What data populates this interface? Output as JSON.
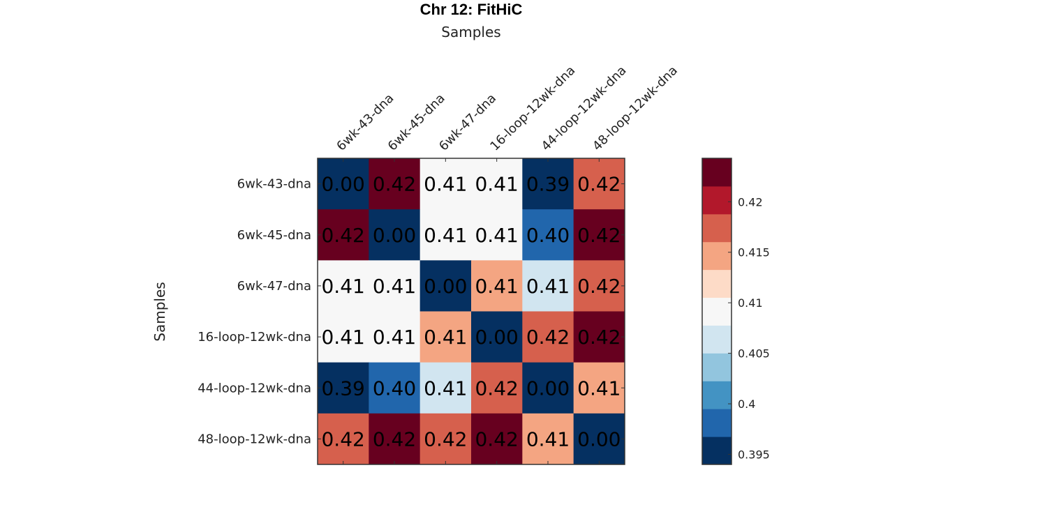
{
  "chart_data": {
    "type": "heatmap",
    "title": "Chr 12: FitHiC",
    "xlabel": "Samples",
    "ylabel": "Samples",
    "x_categories": [
      "6wk-43-dna",
      "6wk-45-dna",
      "6wk-47-dna",
      "16-loop-12wk-dna",
      "44-loop-12wk-dna",
      "48-loop-12wk-dna"
    ],
    "y_categories": [
      "6wk-43-dna",
      "6wk-45-dna",
      "6wk-47-dna",
      "16-loop-12wk-dna",
      "44-loop-12wk-dna",
      "48-loop-12wk-dna"
    ],
    "values": [
      [
        0.0,
        0.4235,
        0.4095,
        0.4097,
        0.3945,
        0.4175
      ],
      [
        0.4235,
        0.0,
        0.4095,
        0.4097,
        0.3985,
        0.4235
      ],
      [
        0.4095,
        0.4095,
        0.0,
        0.4135,
        0.4065,
        0.4175
      ],
      [
        0.4097,
        0.4097,
        0.4135,
        0.0,
        0.4175,
        0.4235
      ],
      [
        0.3945,
        0.3985,
        0.4065,
        0.4175,
        0.0,
        0.4135
      ],
      [
        0.4175,
        0.4235,
        0.4175,
        0.4235,
        0.4135,
        0.0
      ]
    ],
    "cell_labels": [
      [
        "0.00",
        "0.42",
        "0.41",
        "0.41",
        "0.39",
        "0.42"
      ],
      [
        "0.42",
        "0.00",
        "0.41",
        "0.41",
        "0.40",
        "0.42"
      ],
      [
        "0.41",
        "0.41",
        "0.00",
        "0.41",
        "0.41",
        "0.42"
      ],
      [
        "0.41",
        "0.41",
        "0.41",
        "0.00",
        "0.42",
        "0.42"
      ],
      [
        "0.39",
        "0.40",
        "0.41",
        "0.42",
        "0.00",
        "0.41"
      ],
      [
        "0.42",
        "0.42",
        "0.42",
        "0.42",
        "0.41",
        "0.00"
      ]
    ],
    "colorbar": {
      "range": [
        0.394,
        0.4243
      ],
      "ticks": [
        0.395,
        0.4,
        0.405,
        0.41,
        0.415,
        0.42
      ],
      "tick_labels": [
        "0.395",
        "0.4",
        "0.405",
        "0.41",
        "0.415",
        "0.42"
      ],
      "colormap": [
        "#053061",
        "#2166ac",
        "#4393c3",
        "#92c5de",
        "#d1e5f0",
        "#f7f7f7",
        "#fddbc7",
        "#f4a582",
        "#d6604d",
        "#b2182b",
        "#67001f"
      ]
    },
    "grid": false,
    "legend": "colorbar-right"
  }
}
